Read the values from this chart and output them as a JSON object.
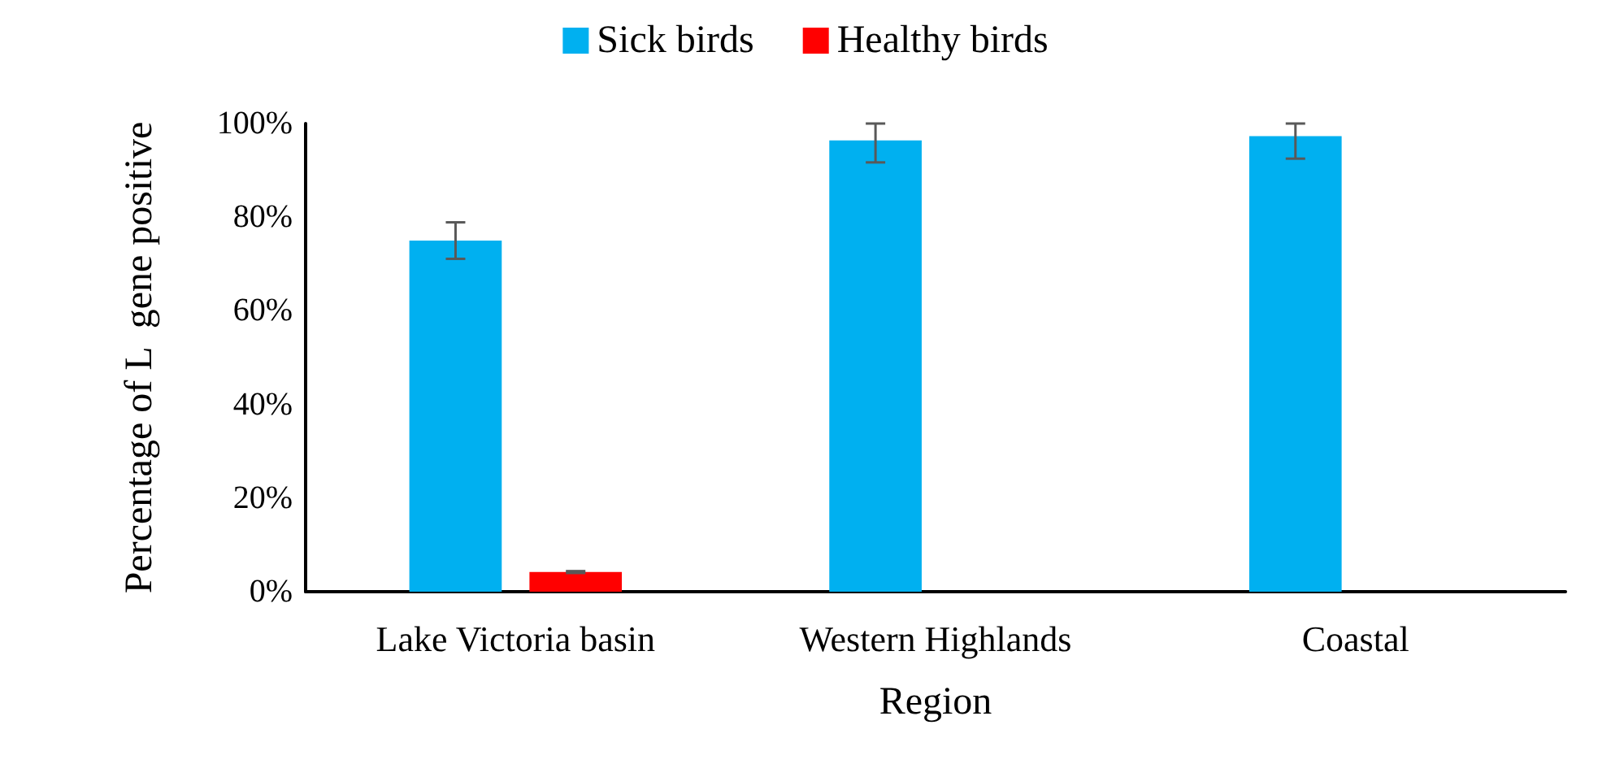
{
  "chart_data": {
    "type": "bar",
    "xlabel": "Region",
    "ylabel": "Percentage of L  gene positive",
    "categories": [
      "Lake Victoria basin",
      "Western Highlands",
      "Coastal"
    ],
    "series": [
      {
        "name": "Sick birds",
        "color": "#00b0f0",
        "values": [
          75,
          96.4,
          97.3
        ],
        "errors": [
          3.9,
          [
            91.7,
            100
          ],
          [
            92.5,
            100
          ]
        ]
      },
      {
        "name": "Healthy birds",
        "color": "#ff0000",
        "values": [
          4.2,
          0,
          0
        ],
        "errors": [
          0.2,
          null,
          null
        ]
      }
    ],
    "ylim": [
      0,
      100
    ],
    "yticks": [
      {
        "value": 0,
        "label": "0%"
      },
      {
        "value": 20,
        "label": "20%"
      },
      {
        "value": 40,
        "label": "40%"
      },
      {
        "value": 60,
        "label": "60%"
      },
      {
        "value": 80,
        "label": "80%"
      },
      {
        "value": 100,
        "label": "100%"
      }
    ],
    "grid": false,
    "legend": "top"
  }
}
